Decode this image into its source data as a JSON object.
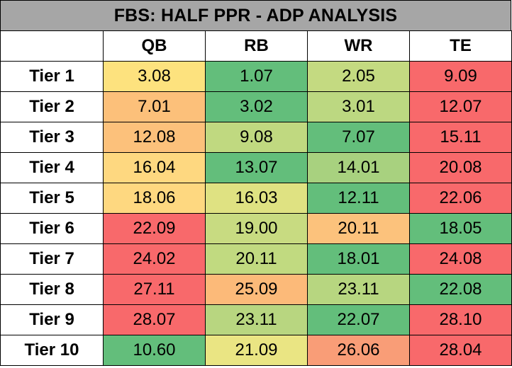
{
  "title": "FBS: HALF PPR - ADP ANALYSIS",
  "chart_data": {
    "type": "table",
    "title": "FBS: HALF PPR - ADP ANALYSIS",
    "columns": [
      "QB",
      "RB",
      "WR",
      "TE"
    ],
    "rows": [
      {
        "tier": "Tier 1",
        "values": [
          "3.08",
          "1.07",
          "2.05",
          "9.09"
        ],
        "colors": [
          "#fde27e",
          "#63be7b",
          "#c4da81",
          "#f8696b"
        ]
      },
      {
        "tier": "Tier 2",
        "values": [
          "7.01",
          "3.02",
          "3.01",
          "12.07"
        ],
        "colors": [
          "#fcc07a",
          "#63be7b",
          "#bcd881",
          "#f8696b"
        ]
      },
      {
        "tier": "Tier 3",
        "values": [
          "12.08",
          "9.08",
          "7.07",
          "15.11"
        ],
        "colors": [
          "#fcc17b",
          "#c0d980",
          "#63be7b",
          "#f8696b"
        ]
      },
      {
        "tier": "Tier 4",
        "values": [
          "16.04",
          "13.07",
          "14.01",
          "20.08"
        ],
        "colors": [
          "#fed880",
          "#63be7b",
          "#a8d17f",
          "#f8696b"
        ]
      },
      {
        "tier": "Tier 5",
        "values": [
          "18.06",
          "16.03",
          "12.11",
          "22.06"
        ],
        "colors": [
          "#fed880",
          "#dfe282",
          "#63be7b",
          "#f8696b"
        ]
      },
      {
        "tier": "Tier 6",
        "values": [
          "22.09",
          "19.00",
          "20.11",
          "18.05"
        ],
        "colors": [
          "#f8696b",
          "#c8db81",
          "#fcc27c",
          "#63be7b"
        ]
      },
      {
        "tier": "Tier 7",
        "values": [
          "24.02",
          "20.11",
          "18.01",
          "24.08"
        ],
        "colors": [
          "#f8696b",
          "#c1da80",
          "#63be7b",
          "#f8696b"
        ]
      },
      {
        "tier": "Tier 8",
        "values": [
          "27.11",
          "25.09",
          "23.11",
          "22.08"
        ],
        "colors": [
          "#f8696b",
          "#fcba79",
          "#b7d680",
          "#63be7b"
        ]
      },
      {
        "tier": "Tier 9",
        "values": [
          "28.07",
          "23.11",
          "22.07",
          "28.10"
        ],
        "colors": [
          "#f8696b",
          "#b8d680",
          "#63be7b",
          "#f8696b"
        ]
      },
      {
        "tier": "Tier 10",
        "values": [
          "10.60",
          "21.09",
          "26.06",
          "28.04"
        ],
        "colors": [
          "#63be7b",
          "#eae583",
          "#f99d77",
          "#f8696b"
        ]
      }
    ]
  }
}
